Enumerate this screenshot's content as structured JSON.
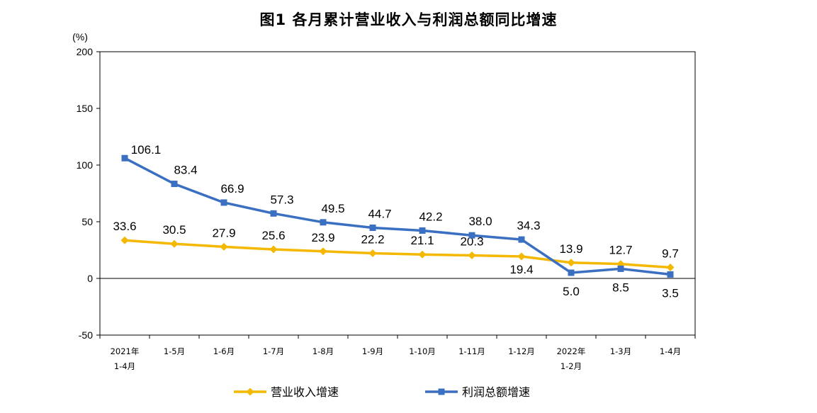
{
  "chart_data": {
    "type": "line",
    "title": "图1  各月累计营业收入与利润总额同比增速",
    "ylabel": "(%)",
    "ylim": [
      -50,
      200
    ],
    "yticks": [
      "200",
      "150",
      "100",
      "50",
      "0",
      "-50"
    ],
    "categories": [
      [
        "2021年",
        "1-4月"
      ],
      [
        "1-5月"
      ],
      [
        "1-6月"
      ],
      [
        "1-7月"
      ],
      [
        "1-8月"
      ],
      [
        "1-9月"
      ],
      [
        "1-10月"
      ],
      [
        "1-11月"
      ],
      [
        "1-12月"
      ],
      [
        "2022年",
        "1-2月"
      ],
      [
        "1-3月"
      ],
      [
        "1-4月"
      ]
    ],
    "series": [
      {
        "name": "营业收入增速",
        "color": "#F5B800",
        "marker": "diamond",
        "values": [
          33.6,
          30.5,
          27.9,
          25.6,
          23.9,
          22.2,
          21.1,
          20.3,
          19.4,
          13.9,
          12.7,
          9.7
        ],
        "labels": [
          "33.6",
          "30.5",
          "27.9",
          "25.6",
          "23.9",
          "22.2",
          "21.1",
          "20.3",
          "19.4",
          "13.9",
          "12.7",
          "9.7"
        ]
      },
      {
        "name": "利润总额增速",
        "color": "#3A6FC1",
        "marker": "square",
        "values": [
          106.1,
          83.4,
          66.9,
          57.3,
          49.5,
          44.7,
          42.2,
          38.0,
          34.3,
          5.0,
          8.5,
          3.5
        ],
        "labels": [
          "106.1",
          "83.4",
          "66.9",
          "57.3",
          "49.5",
          "44.7",
          "42.2",
          "38.0",
          "34.3",
          "5.0",
          "8.5",
          "3.5"
        ]
      }
    ],
    "grid": false,
    "legend": "bottom"
  }
}
